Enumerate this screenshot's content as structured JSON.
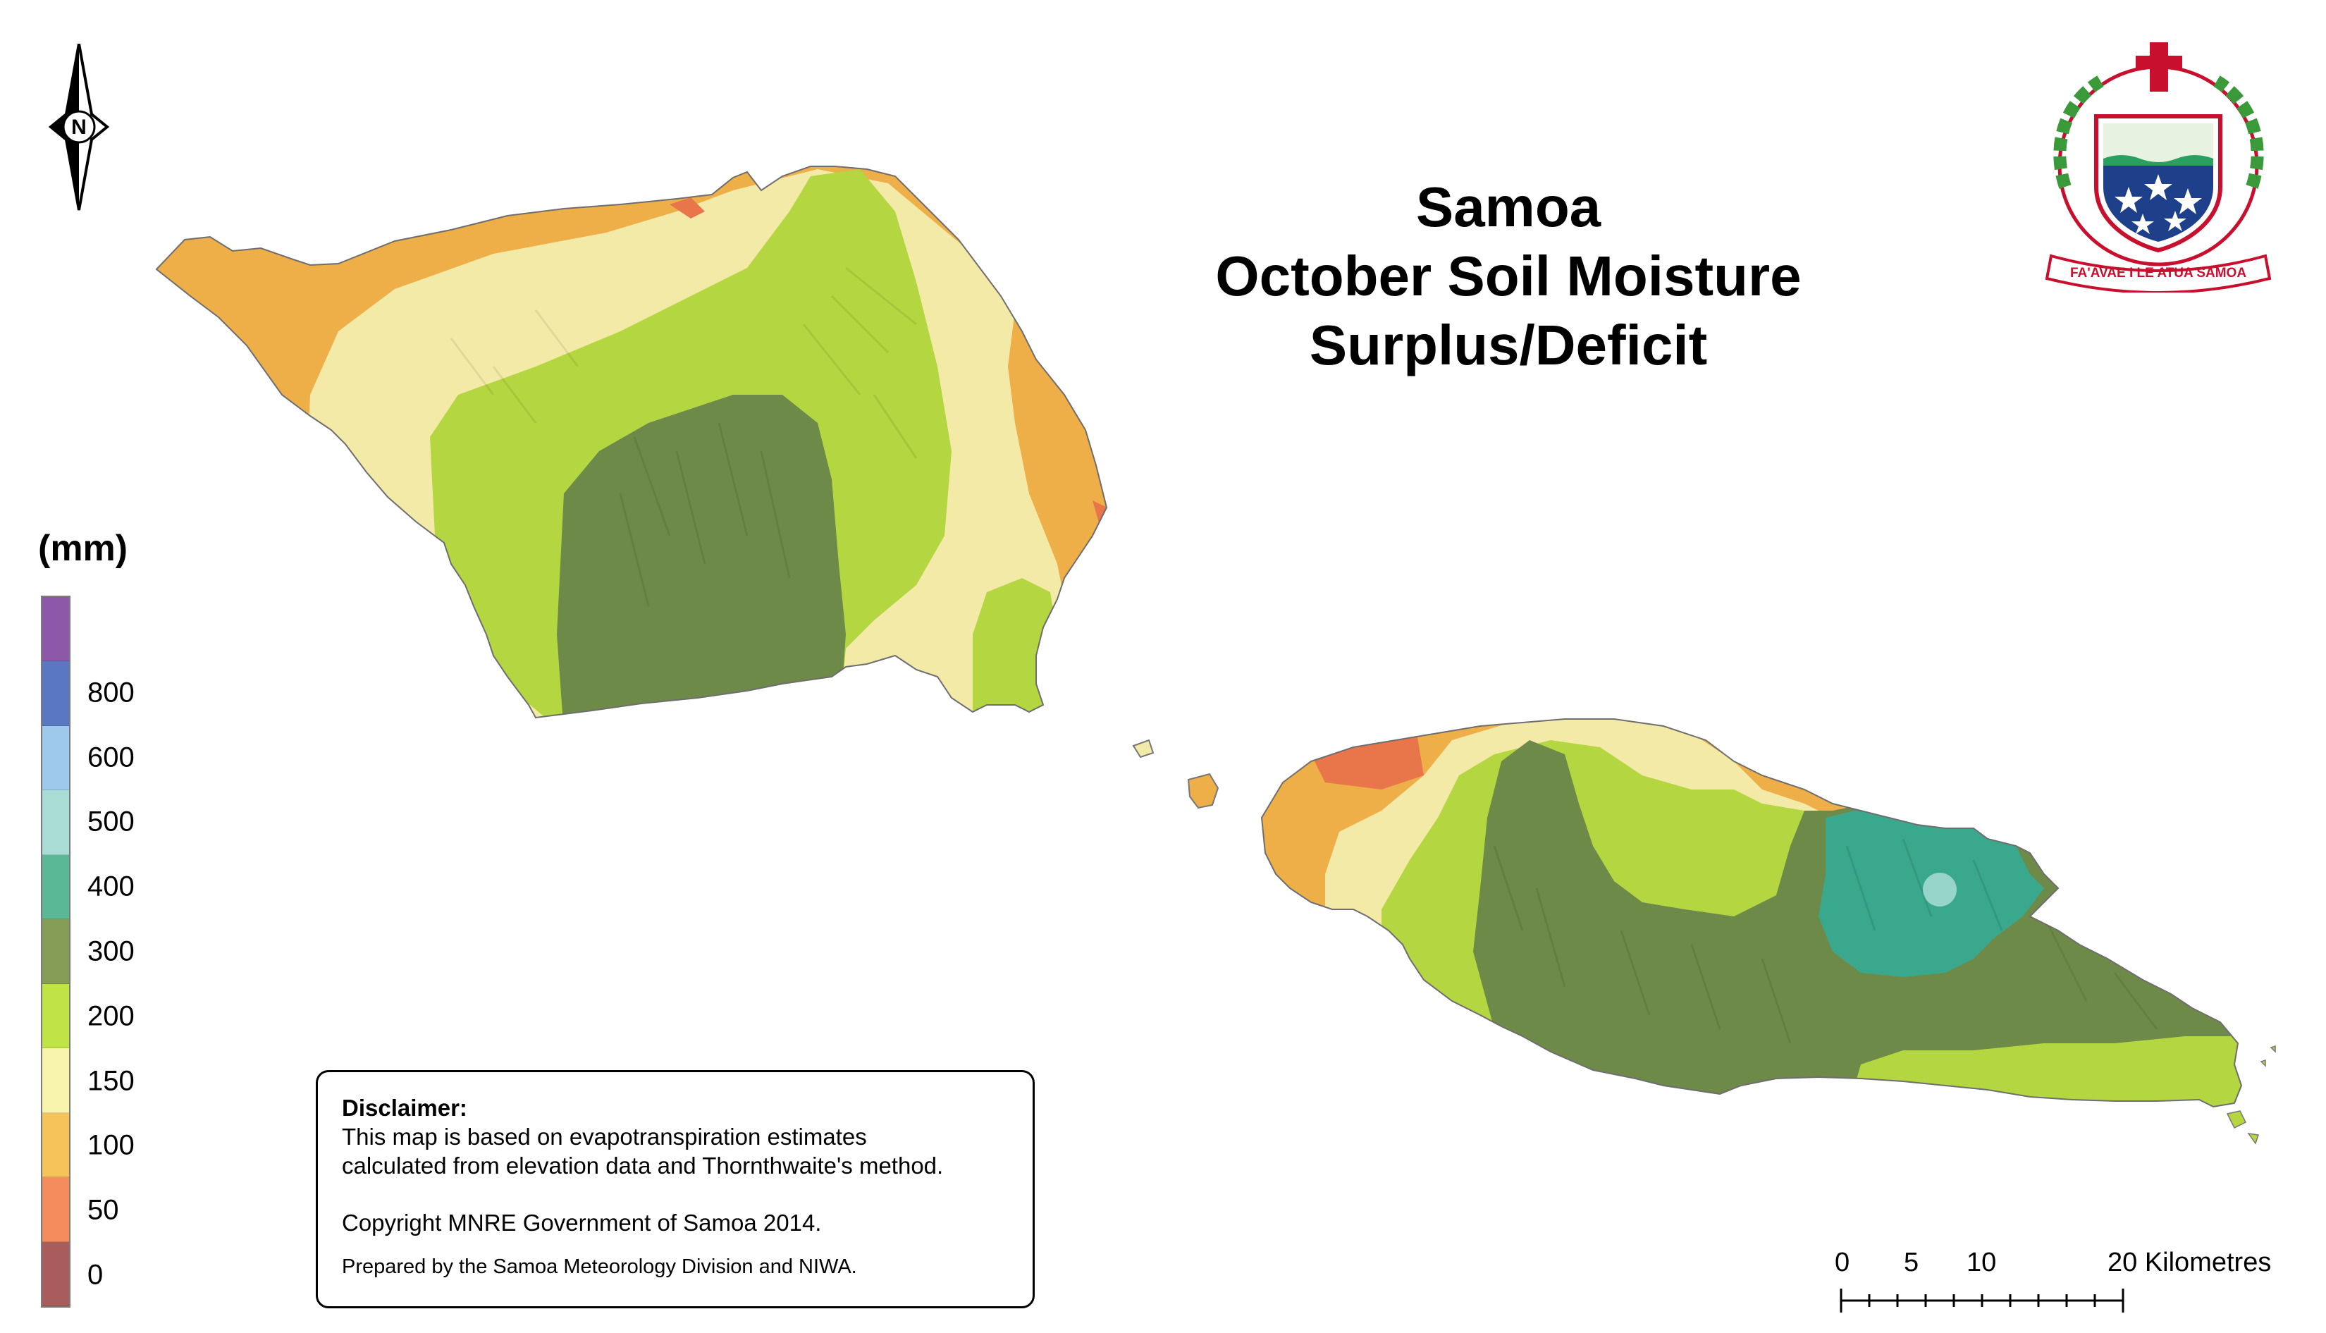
{
  "title": {
    "line1": "Samoa",
    "line2": "October Soil Moisture",
    "line3": "Surplus/Deficit"
  },
  "legend": {
    "unit": "(mm)",
    "swatches": [
      {
        "color": "#8e58a8"
      },
      {
        "color": "#5a77c4",
        "label": "800"
      },
      {
        "color": "#9ec8ec",
        "label": "600"
      },
      {
        "color": "#a8dcd4",
        "label": "500"
      },
      {
        "color": "#5ab896",
        "label": "400"
      },
      {
        "color": "#849c56",
        "label": "300"
      },
      {
        "color": "#c0e446",
        "label": "200"
      },
      {
        "color": "#f8f4ae",
        "label": "150"
      },
      {
        "color": "#f6c25a",
        "label": "100"
      },
      {
        "color": "#f48c5e",
        "label": "50"
      },
      {
        "color": "#a85c5c",
        "label": "0"
      }
    ]
  },
  "disclaimer": {
    "heading": "Disclaimer:",
    "line1": "This map is based on evapotranspiration estimates",
    "line2": "calculated from elevation data and Thornthwaite's method.",
    "copyright": "Copyright MNRE Government of Samoa 2014.",
    "prepared": "Prepared by the Samoa Meteorology Division and NIWA."
  },
  "scale_bar": {
    "labels": [
      "0",
      "5",
      "10",
      "20 Kilometres"
    ]
  },
  "north_arrow": {
    "label": "N",
    "icon": "north-arrow-icon"
  },
  "emblem": {
    "motto": "FA'AVAE I LE ATUA SAMOA",
    "icon": "samoa-coat-of-arms-icon"
  },
  "colors": {
    "orange": "#eeae48",
    "cream": "#f4eaa8",
    "lime": "#b4d640",
    "olive": "#6e8a48",
    "teal": "#3aa88c",
    "red": "#e8764a"
  }
}
